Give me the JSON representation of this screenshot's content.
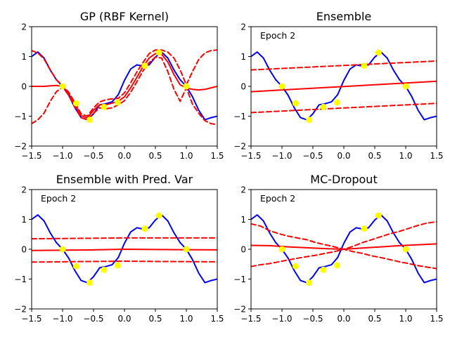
{
  "colors": {
    "truth": "#0000ff",
    "mean": "#ff0000",
    "band": "#ff0000",
    "points": "#ffff00"
  },
  "chart_data": [
    {
      "type": "line",
      "title": "GP (RBF Kernel)",
      "annotation": "",
      "xlim": [
        -1.5,
        1.5
      ],
      "ylim": [
        -2,
        2
      ],
      "xticks": [
        -1.5,
        -1.0,
        -0.5,
        0.0,
        0.5,
        1.0,
        1.5
      ],
      "yticks": [
        -2,
        -1,
        0,
        1,
        2
      ],
      "xtick_labels": [
        "−1.5",
        "−1.0",
        "−0.5",
        "0.0",
        "0.5",
        "1.0",
        "1.5"
      ],
      "ytick_labels": [
        "−2",
        "−1",
        "0",
        "1",
        "2"
      ],
      "points": {
        "x": [
          -1.0,
          -0.78,
          -0.56,
          -0.33,
          -0.11,
          0.33,
          0.56,
          1.0
        ],
        "y": [
          0.0,
          -0.57,
          -1.12,
          -0.69,
          -0.54,
          0.69,
          1.13,
          0.0
        ]
      },
      "truth": {
        "name": "true function",
        "x": [
          -1.5,
          -1.4,
          -1.3,
          -1.2,
          -1.1,
          -1.0,
          -0.9,
          -0.8,
          -0.7,
          -0.6,
          -0.5,
          -0.4,
          -0.3,
          -0.2,
          -0.1,
          0.0,
          0.1,
          0.2,
          0.3,
          0.4,
          0.5,
          0.6,
          0.7,
          0.8,
          0.9,
          1.0,
          1.1,
          1.2,
          1.3,
          1.4,
          1.5
        ],
        "y": [
          1.0,
          1.15,
          0.95,
          0.55,
          0.22,
          0.0,
          -0.3,
          -0.72,
          -1.05,
          -1.12,
          -0.92,
          -0.62,
          -0.58,
          -0.52,
          -0.28,
          0.2,
          0.58,
          0.72,
          0.68,
          0.72,
          0.98,
          1.15,
          0.95,
          0.55,
          0.22,
          0.0,
          -0.35,
          -0.8,
          -1.12,
          -1.05,
          -1.0
        ]
      },
      "mean": {
        "name": "predictive mean",
        "x": [
          -1.5,
          -1.4,
          -1.3,
          -1.2,
          -1.1,
          -1.0,
          -0.9,
          -0.8,
          -0.7,
          -0.6,
          -0.5,
          -0.4,
          -0.3,
          -0.2,
          -0.1,
          0.0,
          0.1,
          0.2,
          0.3,
          0.4,
          0.5,
          0.6,
          0.7,
          0.8,
          0.9,
          1.0,
          1.1,
          1.2,
          1.3,
          1.4,
          1.5
        ],
        "y": [
          0.0,
          0.0,
          0.0,
          0.02,
          0.03,
          0.0,
          -0.25,
          -0.62,
          -0.98,
          -1.06,
          -0.8,
          -0.62,
          -0.62,
          -0.56,
          -0.5,
          -0.35,
          -0.05,
          0.3,
          0.66,
          0.95,
          1.1,
          1.08,
          0.82,
          0.4,
          0.05,
          -0.05,
          -0.1,
          -0.12,
          -0.1,
          -0.05,
          0.0
        ]
      },
      "upper": {
        "name": "upper bound",
        "x": [
          -1.5,
          -1.4,
          -1.3,
          -1.2,
          -1.1,
          -1.0,
          -0.9,
          -0.8,
          -0.7,
          -0.6,
          -0.5,
          -0.4,
          -0.3,
          -0.2,
          -0.1,
          0.0,
          0.1,
          0.2,
          0.3,
          0.4,
          0.5,
          0.6,
          0.7,
          0.8,
          0.9,
          1.0,
          1.1,
          1.2,
          1.3,
          1.4,
          1.5
        ],
        "y": [
          1.2,
          1.12,
          0.92,
          0.55,
          0.22,
          0.02,
          -0.2,
          -0.55,
          -0.92,
          -1.0,
          -0.72,
          -0.52,
          -0.45,
          -0.42,
          -0.4,
          -0.22,
          0.12,
          0.48,
          0.8,
          1.1,
          1.22,
          1.22,
          1.15,
          0.95,
          0.55,
          0.05,
          0.5,
          0.9,
          1.12,
          1.2,
          1.22
        ]
      },
      "lower": {
        "name": "lower bound",
        "x": [
          -1.5,
          -1.4,
          -1.3,
          -1.2,
          -1.1,
          -1.0,
          -0.9,
          -0.8,
          -0.7,
          -0.6,
          -0.5,
          -0.4,
          -0.3,
          -0.2,
          -0.1,
          0.0,
          0.1,
          0.2,
          0.3,
          0.4,
          0.5,
          0.6,
          0.7,
          0.8,
          0.9,
          1.0,
          1.1,
          1.2,
          1.3,
          1.4,
          1.5
        ],
        "y": [
          -1.25,
          -1.12,
          -0.9,
          -0.5,
          -0.18,
          -0.02,
          -0.3,
          -0.7,
          -1.05,
          -1.12,
          -0.9,
          -0.72,
          -0.75,
          -0.72,
          -0.62,
          -0.48,
          -0.2,
          0.15,
          0.52,
          0.8,
          0.98,
          0.95,
          0.5,
          -0.1,
          -0.5,
          -0.05,
          -0.6,
          -0.9,
          -1.15,
          -1.25,
          -1.28
        ]
      }
    },
    {
      "type": "line",
      "title": "Ensemble",
      "annotation": "Epoch 2",
      "xlim": [
        -1.5,
        1.5
      ],
      "ylim": [
        -2,
        2
      ],
      "xticks": [
        -1.5,
        -1.0,
        -0.5,
        0.0,
        0.5,
        1.0,
        1.5
      ],
      "yticks": [
        -2,
        -1,
        0,
        1,
        2
      ],
      "xtick_labels": [
        "−1.5",
        "−1.0",
        "−0.5",
        "0.0",
        "0.5",
        "1.0",
        "1.5"
      ],
      "ytick_labels": [
        "−2",
        "−1",
        "0",
        "1",
        "2"
      ],
      "points": {
        "x": [
          -1.0,
          -0.78,
          -0.56,
          -0.33,
          -0.11,
          0.33,
          0.56,
          1.0
        ],
        "y": [
          0.0,
          -0.57,
          -1.12,
          -0.69,
          -0.54,
          0.69,
          1.13,
          0.0
        ]
      },
      "truth": {
        "name": "true function",
        "x": [
          -1.5,
          -1.4,
          -1.3,
          -1.2,
          -1.1,
          -1.0,
          -0.9,
          -0.8,
          -0.7,
          -0.6,
          -0.5,
          -0.4,
          -0.3,
          -0.2,
          -0.1,
          0.0,
          0.1,
          0.2,
          0.3,
          0.4,
          0.5,
          0.6,
          0.7,
          0.8,
          0.9,
          1.0,
          1.1,
          1.2,
          1.3,
          1.4,
          1.5
        ],
        "y": [
          1.0,
          1.15,
          0.95,
          0.55,
          0.22,
          0.0,
          -0.3,
          -0.72,
          -1.05,
          -1.12,
          -0.92,
          -0.62,
          -0.58,
          -0.52,
          -0.28,
          0.2,
          0.58,
          0.72,
          0.68,
          0.72,
          0.98,
          1.15,
          0.95,
          0.55,
          0.22,
          0.0,
          -0.35,
          -0.8,
          -1.12,
          -1.05,
          -1.0
        ]
      },
      "mean": {
        "name": "predictive mean",
        "x": [
          -1.5,
          1.5
        ],
        "y": [
          -0.18,
          0.17
        ]
      },
      "upper": {
        "name": "upper bound",
        "x": [
          -1.5,
          1.5
        ],
        "y": [
          0.55,
          0.85
        ]
      },
      "lower": {
        "name": "lower bound",
        "x": [
          -1.5,
          1.5
        ],
        "y": [
          -0.88,
          -0.57
        ]
      }
    },
    {
      "type": "line",
      "title": "Ensemble with Pred. Var",
      "annotation": "Epoch 2",
      "xlim": [
        -1.5,
        1.5
      ],
      "ylim": [
        -2,
        2
      ],
      "xticks": [
        -1.5,
        -1.0,
        -0.5,
        0.0,
        0.5,
        1.0,
        1.5
      ],
      "yticks": [
        -2,
        -1,
        0,
        1,
        2
      ],
      "xtick_labels": [
        "−1.5",
        "−1.0",
        "−0.5",
        "0.0",
        "0.5",
        "1.0",
        "1.5"
      ],
      "ytick_labels": [
        "−2",
        "−1",
        "0",
        "1",
        "2"
      ],
      "points": {
        "x": [
          -1.0,
          -0.78,
          -0.56,
          -0.33,
          -0.11,
          0.33,
          0.56,
          1.0
        ],
        "y": [
          0.0,
          -0.57,
          -1.12,
          -0.69,
          -0.54,
          0.69,
          1.13,
          0.0
        ]
      },
      "truth": {
        "name": "true function",
        "x": [
          -1.5,
          -1.4,
          -1.3,
          -1.2,
          -1.1,
          -1.0,
          -0.9,
          -0.8,
          -0.7,
          -0.6,
          -0.5,
          -0.4,
          -0.3,
          -0.2,
          -0.1,
          0.0,
          0.1,
          0.2,
          0.3,
          0.4,
          0.5,
          0.6,
          0.7,
          0.8,
          0.9,
          1.0,
          1.1,
          1.2,
          1.3,
          1.4,
          1.5
        ],
        "y": [
          1.0,
          1.15,
          0.95,
          0.55,
          0.22,
          0.0,
          -0.3,
          -0.72,
          -1.05,
          -1.12,
          -0.92,
          -0.62,
          -0.58,
          -0.52,
          -0.28,
          0.2,
          0.58,
          0.72,
          0.68,
          0.72,
          0.98,
          1.15,
          0.95,
          0.55,
          0.22,
          0.0,
          -0.35,
          -0.8,
          -1.12,
          -1.05,
          -1.0
        ]
      },
      "mean": {
        "name": "predictive mean",
        "x": [
          -1.5,
          -0.5,
          0.0,
          0.5,
          1.5
        ],
        "y": [
          -0.04,
          -0.02,
          0.0,
          -0.01,
          -0.02
        ]
      },
      "upper": {
        "name": "upper bound",
        "x": [
          -1.5,
          -0.5,
          0.0,
          0.5,
          1.5
        ],
        "y": [
          0.35,
          0.37,
          0.38,
          0.38,
          0.38
        ]
      },
      "lower": {
        "name": "lower bound",
        "x": [
          -1.5,
          -0.5,
          0.0,
          0.5,
          1.5
        ],
        "y": [
          -0.43,
          -0.41,
          -0.4,
          -0.41,
          -0.42
        ]
      }
    },
    {
      "type": "line",
      "title": "MC-Dropout",
      "annotation": "Epoch 2",
      "xlim": [
        -1.5,
        1.5
      ],
      "ylim": [
        -2,
        2
      ],
      "xticks": [
        -1.5,
        -1.0,
        -0.5,
        0.0,
        0.5,
        1.0,
        1.5
      ],
      "yticks": [
        -2,
        -1,
        0,
        1,
        2
      ],
      "xtick_labels": [
        "−1.5",
        "−1.0",
        "−0.5",
        "0.0",
        "0.5",
        "1.0",
        "1.5"
      ],
      "ytick_labels": [
        "−2",
        "−1",
        "0",
        "1",
        "2"
      ],
      "points": {
        "x": [
          -1.0,
          -0.78,
          -0.56,
          -0.33,
          -0.11,
          0.33,
          0.56,
          1.0
        ],
        "y": [
          0.0,
          -0.57,
          -1.12,
          -0.69,
          -0.54,
          0.69,
          1.13,
          0.0
        ]
      },
      "truth": {
        "name": "true function",
        "x": [
          -1.5,
          -1.4,
          -1.3,
          -1.2,
          -1.1,
          -1.0,
          -0.9,
          -0.8,
          -0.7,
          -0.6,
          -0.5,
          -0.4,
          -0.3,
          -0.2,
          -0.1,
          0.0,
          0.1,
          0.2,
          0.3,
          0.4,
          0.5,
          0.6,
          0.7,
          0.8,
          0.9,
          1.0,
          1.1,
          1.2,
          1.3,
          1.4,
          1.5
        ],
        "y": [
          1.0,
          1.15,
          0.95,
          0.55,
          0.22,
          0.0,
          -0.3,
          -0.72,
          -1.05,
          -1.12,
          -0.92,
          -0.62,
          -0.58,
          -0.52,
          -0.28,
          0.2,
          0.58,
          0.72,
          0.68,
          0.72,
          0.98,
          1.15,
          0.95,
          0.55,
          0.22,
          0.0,
          -0.35,
          -0.8,
          -1.12,
          -1.05,
          -1.0
        ]
      },
      "mean": {
        "name": "predictive mean",
        "x": [
          -1.5,
          -1.2,
          -0.9,
          -0.6,
          -0.3,
          0.0,
          0.3,
          0.6,
          0.9,
          1.2,
          1.5
        ],
        "y": [
          0.13,
          0.12,
          0.08,
          0.05,
          0.02,
          0.0,
          0.04,
          0.08,
          0.12,
          0.15,
          0.18
        ]
      },
      "upper": {
        "name": "upper bound",
        "x": [
          -1.5,
          -1.35,
          -1.2,
          -1.05,
          -0.9,
          -0.75,
          -0.6,
          -0.45,
          -0.3,
          -0.15,
          0.0,
          0.15,
          0.3,
          0.45,
          0.6,
          0.75,
          0.9,
          1.05,
          1.2,
          1.35,
          1.5
        ],
        "y": [
          0.85,
          0.78,
          0.62,
          0.52,
          0.44,
          0.38,
          0.32,
          0.22,
          0.15,
          0.08,
          0.0,
          0.1,
          0.22,
          0.32,
          0.42,
          0.52,
          0.6,
          0.7,
          0.8,
          0.88,
          0.92
        ]
      },
      "lower": {
        "name": "lower bound",
        "x": [
          -1.5,
          -1.35,
          -1.2,
          -1.05,
          -0.9,
          -0.75,
          -0.6,
          -0.45,
          -0.3,
          -0.15,
          0.0,
          0.15,
          0.3,
          0.45,
          0.6,
          0.75,
          0.9,
          1.05,
          1.2,
          1.35,
          1.5
        ],
        "y": [
          -0.58,
          -0.52,
          -0.48,
          -0.42,
          -0.36,
          -0.3,
          -0.25,
          -0.2,
          -0.14,
          -0.08,
          0.0,
          -0.08,
          -0.14,
          -0.22,
          -0.28,
          -0.35,
          -0.42,
          -0.48,
          -0.55,
          -0.6,
          -0.65
        ]
      }
    }
  ]
}
